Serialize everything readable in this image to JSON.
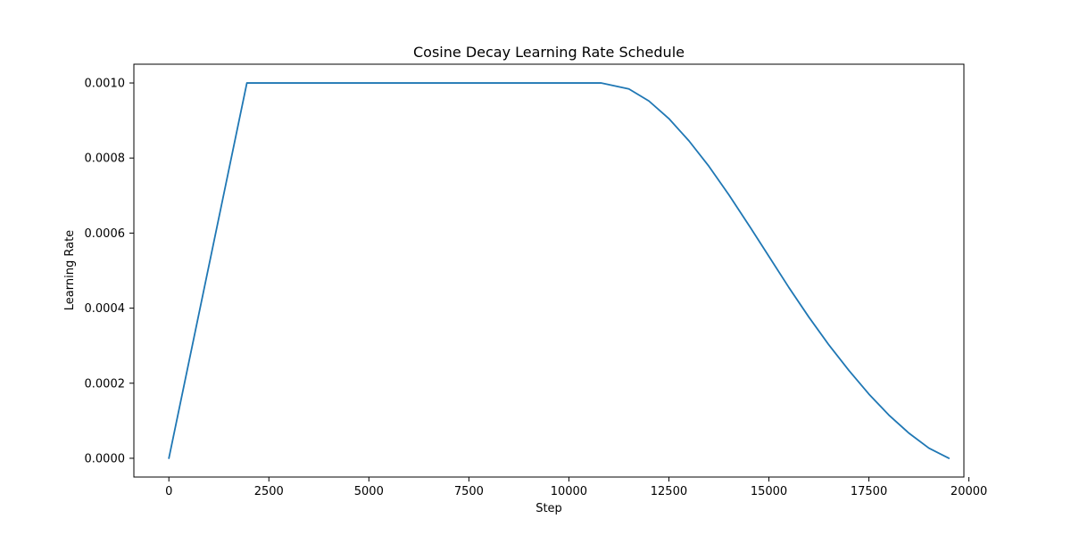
{
  "chart_data": {
    "type": "line",
    "title": "Cosine Decay Learning Rate Schedule",
    "xlabel": "Step",
    "ylabel": "Learning Rate",
    "xlim": [
      -875,
      19875
    ],
    "ylim": [
      -5e-05,
      0.00105
    ],
    "xticks": [
      0,
      2500,
      5000,
      7500,
      10000,
      12500,
      15000,
      17500,
      20000
    ],
    "xtick_labels": [
      "0",
      "2500",
      "5000",
      "7500",
      "10000",
      "12500",
      "15000",
      "17500",
      "20000"
    ],
    "yticks": [
      0.0,
      0.0002,
      0.0004,
      0.0006,
      0.0008,
      0.001
    ],
    "ytick_labels": [
      "0.0000",
      "0.0002",
      "0.0004",
      "0.0006",
      "0.0008",
      "0.0010"
    ],
    "grid": false,
    "colors": {
      "line": "#1f77b4",
      "axes": "#000000"
    },
    "series": [
      {
        "x": [
          0,
          1950,
          10800,
          11500,
          12000,
          12500,
          13000,
          13500,
          14000,
          14500,
          15000,
          15500,
          16000,
          16500,
          17000,
          17500,
          18000,
          18500,
          19000,
          19500
        ],
        "y": [
          0.0,
          0.001,
          0.001,
          0.000984,
          0.000952,
          0.000905,
          0.000846,
          0.000778,
          0.000702,
          0.000621,
          0.000538,
          0.000455,
          0.000376,
          0.000302,
          0.000234,
          0.000171,
          0.000115,
          6.7e-05,
          2.7e-05,
          0.0
        ]
      }
    ]
  }
}
